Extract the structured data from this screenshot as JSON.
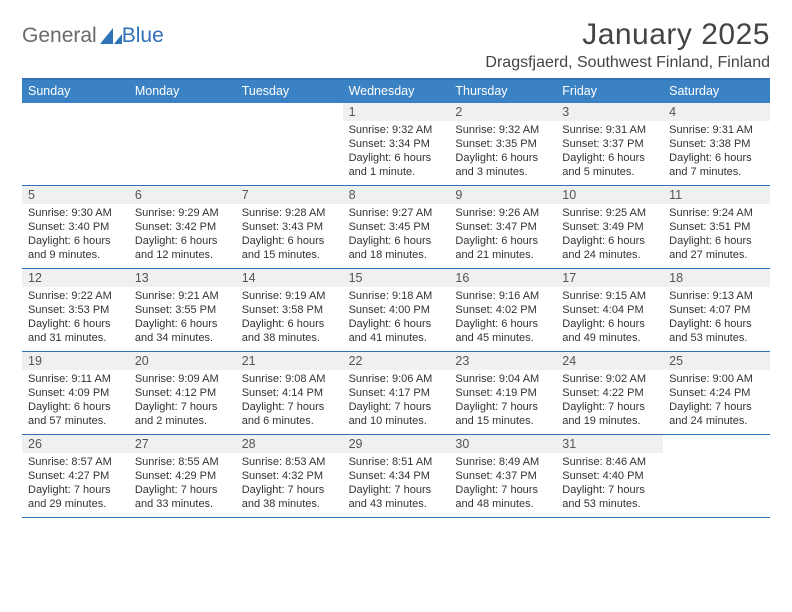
{
  "brand": {
    "general": "General",
    "blue": "Blue",
    "accent_color": "#2f72b8"
  },
  "title": {
    "month": "January 2025",
    "location": "Dragsfjaerd, Southwest Finland, Finland"
  },
  "theme": {
    "header_bg": "#3a82c4",
    "header_border": "#2f72b8",
    "daynum_bg": "#eef0f1",
    "text_color": "#333333"
  },
  "day_names": [
    "Sunday",
    "Monday",
    "Tuesday",
    "Wednesday",
    "Thursday",
    "Friday",
    "Saturday"
  ],
  "weeks": [
    [
      {
        "n": "",
        "sr": "",
        "ss": "",
        "dl": ""
      },
      {
        "n": "",
        "sr": "",
        "ss": "",
        "dl": ""
      },
      {
        "n": "",
        "sr": "",
        "ss": "",
        "dl": ""
      },
      {
        "n": "1",
        "sr": "Sunrise: 9:32 AM",
        "ss": "Sunset: 3:34 PM",
        "dl": "Daylight: 6 hours and 1 minute."
      },
      {
        "n": "2",
        "sr": "Sunrise: 9:32 AM",
        "ss": "Sunset: 3:35 PM",
        "dl": "Daylight: 6 hours and 3 minutes."
      },
      {
        "n": "3",
        "sr": "Sunrise: 9:31 AM",
        "ss": "Sunset: 3:37 PM",
        "dl": "Daylight: 6 hours and 5 minutes."
      },
      {
        "n": "4",
        "sr": "Sunrise: 9:31 AM",
        "ss": "Sunset: 3:38 PM",
        "dl": "Daylight: 6 hours and 7 minutes."
      }
    ],
    [
      {
        "n": "5",
        "sr": "Sunrise: 9:30 AM",
        "ss": "Sunset: 3:40 PM",
        "dl": "Daylight: 6 hours and 9 minutes."
      },
      {
        "n": "6",
        "sr": "Sunrise: 9:29 AM",
        "ss": "Sunset: 3:42 PM",
        "dl": "Daylight: 6 hours and 12 minutes."
      },
      {
        "n": "7",
        "sr": "Sunrise: 9:28 AM",
        "ss": "Sunset: 3:43 PM",
        "dl": "Daylight: 6 hours and 15 minutes."
      },
      {
        "n": "8",
        "sr": "Sunrise: 9:27 AM",
        "ss": "Sunset: 3:45 PM",
        "dl": "Daylight: 6 hours and 18 minutes."
      },
      {
        "n": "9",
        "sr": "Sunrise: 9:26 AM",
        "ss": "Sunset: 3:47 PM",
        "dl": "Daylight: 6 hours and 21 minutes."
      },
      {
        "n": "10",
        "sr": "Sunrise: 9:25 AM",
        "ss": "Sunset: 3:49 PM",
        "dl": "Daylight: 6 hours and 24 minutes."
      },
      {
        "n": "11",
        "sr": "Sunrise: 9:24 AM",
        "ss": "Sunset: 3:51 PM",
        "dl": "Daylight: 6 hours and 27 minutes."
      }
    ],
    [
      {
        "n": "12",
        "sr": "Sunrise: 9:22 AM",
        "ss": "Sunset: 3:53 PM",
        "dl": "Daylight: 6 hours and 31 minutes."
      },
      {
        "n": "13",
        "sr": "Sunrise: 9:21 AM",
        "ss": "Sunset: 3:55 PM",
        "dl": "Daylight: 6 hours and 34 minutes."
      },
      {
        "n": "14",
        "sr": "Sunrise: 9:19 AM",
        "ss": "Sunset: 3:58 PM",
        "dl": "Daylight: 6 hours and 38 minutes."
      },
      {
        "n": "15",
        "sr": "Sunrise: 9:18 AM",
        "ss": "Sunset: 4:00 PM",
        "dl": "Daylight: 6 hours and 41 minutes."
      },
      {
        "n": "16",
        "sr": "Sunrise: 9:16 AM",
        "ss": "Sunset: 4:02 PM",
        "dl": "Daylight: 6 hours and 45 minutes."
      },
      {
        "n": "17",
        "sr": "Sunrise: 9:15 AM",
        "ss": "Sunset: 4:04 PM",
        "dl": "Daylight: 6 hours and 49 minutes."
      },
      {
        "n": "18",
        "sr": "Sunrise: 9:13 AM",
        "ss": "Sunset: 4:07 PM",
        "dl": "Daylight: 6 hours and 53 minutes."
      }
    ],
    [
      {
        "n": "19",
        "sr": "Sunrise: 9:11 AM",
        "ss": "Sunset: 4:09 PM",
        "dl": "Daylight: 6 hours and 57 minutes."
      },
      {
        "n": "20",
        "sr": "Sunrise: 9:09 AM",
        "ss": "Sunset: 4:12 PM",
        "dl": "Daylight: 7 hours and 2 minutes."
      },
      {
        "n": "21",
        "sr": "Sunrise: 9:08 AM",
        "ss": "Sunset: 4:14 PM",
        "dl": "Daylight: 7 hours and 6 minutes."
      },
      {
        "n": "22",
        "sr": "Sunrise: 9:06 AM",
        "ss": "Sunset: 4:17 PM",
        "dl": "Daylight: 7 hours and 10 minutes."
      },
      {
        "n": "23",
        "sr": "Sunrise: 9:04 AM",
        "ss": "Sunset: 4:19 PM",
        "dl": "Daylight: 7 hours and 15 minutes."
      },
      {
        "n": "24",
        "sr": "Sunrise: 9:02 AM",
        "ss": "Sunset: 4:22 PM",
        "dl": "Daylight: 7 hours and 19 minutes."
      },
      {
        "n": "25",
        "sr": "Sunrise: 9:00 AM",
        "ss": "Sunset: 4:24 PM",
        "dl": "Daylight: 7 hours and 24 minutes."
      }
    ],
    [
      {
        "n": "26",
        "sr": "Sunrise: 8:57 AM",
        "ss": "Sunset: 4:27 PM",
        "dl": "Daylight: 7 hours and 29 minutes."
      },
      {
        "n": "27",
        "sr": "Sunrise: 8:55 AM",
        "ss": "Sunset: 4:29 PM",
        "dl": "Daylight: 7 hours and 33 minutes."
      },
      {
        "n": "28",
        "sr": "Sunrise: 8:53 AM",
        "ss": "Sunset: 4:32 PM",
        "dl": "Daylight: 7 hours and 38 minutes."
      },
      {
        "n": "29",
        "sr": "Sunrise: 8:51 AM",
        "ss": "Sunset: 4:34 PM",
        "dl": "Daylight: 7 hours and 43 minutes."
      },
      {
        "n": "30",
        "sr": "Sunrise: 8:49 AM",
        "ss": "Sunset: 4:37 PM",
        "dl": "Daylight: 7 hours and 48 minutes."
      },
      {
        "n": "31",
        "sr": "Sunrise: 8:46 AM",
        "ss": "Sunset: 4:40 PM",
        "dl": "Daylight: 7 hours and 53 minutes."
      },
      {
        "n": "",
        "sr": "",
        "ss": "",
        "dl": ""
      }
    ]
  ]
}
